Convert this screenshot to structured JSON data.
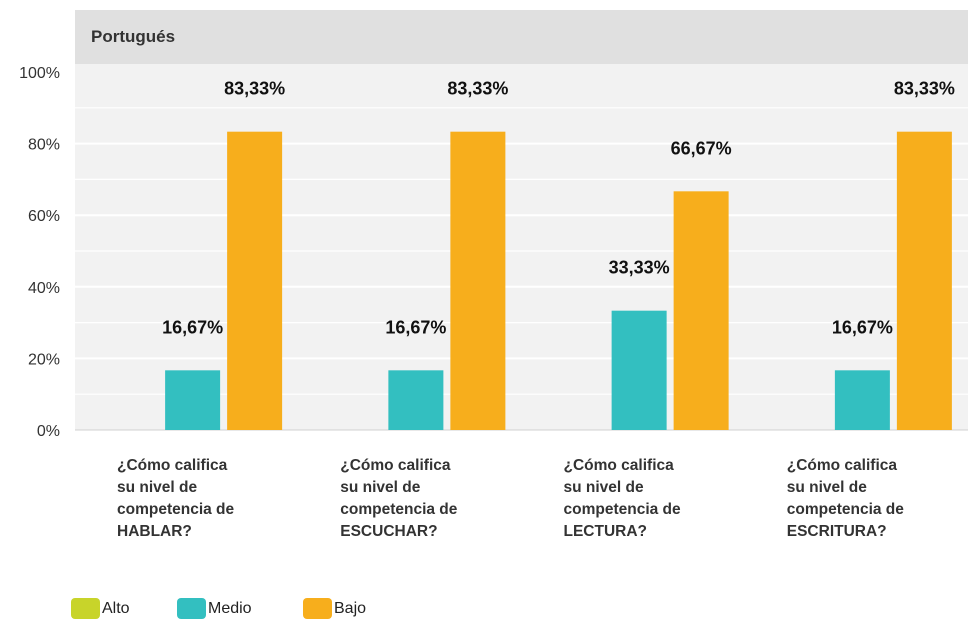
{
  "chart_data": {
    "type": "bar",
    "title": "Portugués",
    "categories": [
      [
        "¿Cómo califica",
        "su nivel de",
        "competencia de",
        "HABLAR?"
      ],
      [
        "¿Cómo califica",
        "su nivel de",
        "competencia de",
        "ESCUCHAR?"
      ],
      [
        "¿Cómo califica",
        "su nivel de",
        "competencia de",
        "LECTURA?"
      ],
      [
        "¿Cómo califica",
        "su nivel de",
        "competencia de",
        "ESCRITURA?"
      ]
    ],
    "series": [
      {
        "name": "Alto",
        "color": "#c8d42a",
        "values": [
          0,
          0,
          0,
          0
        ],
        "labels": [
          "",
          "",
          "",
          ""
        ]
      },
      {
        "name": "Medio",
        "color": "#33bfc0",
        "values": [
          16.67,
          16.67,
          33.33,
          16.67
        ],
        "labels": [
          "16,67%",
          "16,67%",
          "33,33%",
          "16,67%"
        ]
      },
      {
        "name": "Bajo",
        "color": "#f7ae1c",
        "values": [
          83.33,
          83.33,
          66.67,
          83.33
        ],
        "labels": [
          "83,33%",
          "83,33%",
          "66,67%",
          "83,33%"
        ]
      }
    ],
    "ylim": [
      0,
      100
    ],
    "yticks": [
      0,
      20,
      40,
      60,
      80,
      100
    ],
    "ytick_labels": [
      "0%",
      "20%",
      "40%",
      "60%",
      "80%",
      "100%"
    ],
    "grid": true,
    "legend_position": "bottom-left"
  }
}
